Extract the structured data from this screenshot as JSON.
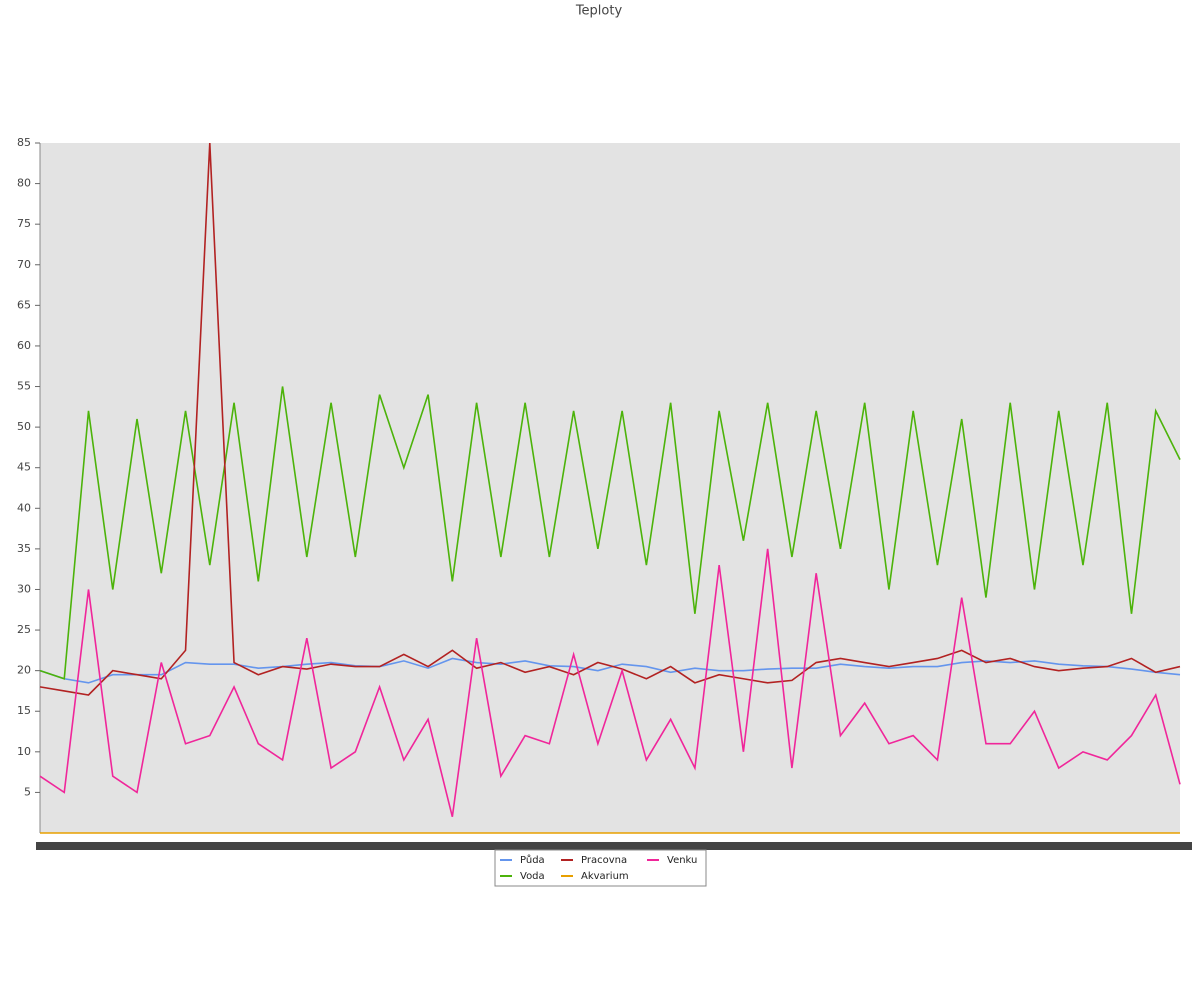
{
  "chart_data": {
    "type": "line",
    "title": "Teploty",
    "ylim": [
      0,
      85
    ],
    "yticks": [
      5,
      10,
      15,
      20,
      25,
      30,
      35,
      40,
      45,
      50,
      55,
      60,
      65,
      70,
      75,
      80,
      85
    ],
    "legend": "bottom",
    "series": [
      {
        "name": "Půda",
        "color": "#6495ed",
        "values": [
          20,
          19,
          18.5,
          19.5,
          19.5,
          19.5,
          21,
          20.8,
          20.8,
          20.3,
          20.5,
          20.8,
          21,
          20.6,
          20.5,
          21.2,
          20.3,
          21.5,
          21,
          20.8,
          21.2,
          20.6,
          20.5,
          20,
          20.8,
          20.5,
          19.8,
          20.3,
          20,
          20,
          20.2,
          20.3,
          20.3,
          20.8,
          20.5,
          20.3,
          20.5,
          20.5,
          21,
          21.2,
          21,
          21.2,
          20.8,
          20.6,
          20.5,
          20.2,
          19.8,
          19.5
        ]
      },
      {
        "name": "Voda",
        "color": "#4cb30a",
        "values": [
          20,
          19,
          52,
          30,
          51,
          32,
          52,
          33,
          53,
          31,
          55,
          34,
          53,
          34,
          54,
          45,
          54,
          31,
          53,
          34,
          53,
          34,
          52,
          35,
          52,
          33,
          53,
          27,
          52,
          36,
          53,
          34,
          52,
          35,
          53,
          30,
          52,
          33,
          51,
          29,
          53,
          30,
          52,
          33,
          53,
          27,
          52,
          46
        ]
      },
      {
        "name": "Pracovna",
        "color": "#b22222",
        "values": [
          18,
          17.5,
          17,
          20,
          19.5,
          19,
          22.5,
          85,
          21,
          19.5,
          20.5,
          20.2,
          20.8,
          20.5,
          20.5,
          22,
          20.5,
          22.5,
          20.3,
          21,
          19.8,
          20.5,
          19.5,
          21,
          20.2,
          19,
          20.5,
          18.5,
          19.5,
          19,
          18.5,
          18.8,
          21,
          21.5,
          21,
          20.5,
          21,
          21.5,
          22.5,
          21,
          21.5,
          20.5,
          20,
          20.3,
          20.5,
          21.5,
          19.8,
          20.5
        ]
      },
      {
        "name": "Akvarium",
        "color": "#e8a000",
        "values": [
          0,
          0,
          0,
          0,
          0,
          0,
          0,
          0,
          0,
          0,
          0,
          0,
          0,
          0,
          0,
          0,
          0,
          0,
          0,
          0,
          0,
          0,
          0,
          0,
          0,
          0,
          0,
          0,
          0,
          0,
          0,
          0,
          0,
          0,
          0,
          0,
          0,
          0,
          0,
          0,
          0,
          0,
          0,
          0,
          0,
          0,
          0,
          0
        ]
      },
      {
        "name": "Venku",
        "color": "#f0269a",
        "values": [
          7,
          5,
          30,
          7,
          5,
          21,
          11,
          12,
          18,
          11,
          9,
          24,
          8,
          10,
          18,
          9,
          14,
          2,
          24,
          7,
          12,
          11,
          22,
          11,
          20,
          9,
          14,
          8,
          33,
          10,
          35,
          8,
          32,
          12,
          16,
          11,
          12,
          9,
          29,
          11,
          11,
          15,
          8,
          10,
          9,
          12,
          17,
          6
        ]
      }
    ]
  }
}
